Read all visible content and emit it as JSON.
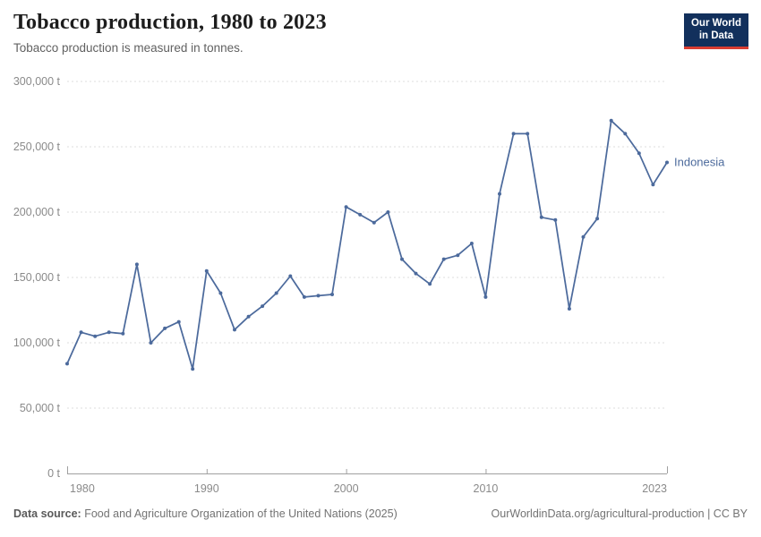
{
  "header": {
    "title": "Tobacco production, 1980 to 2023",
    "subtitle": "Tobacco production is measured in tonnes."
  },
  "logo": {
    "line1": "Our World",
    "line2": "in Data",
    "bg_color": "#12305c",
    "accent_color": "#d93d32"
  },
  "chart_data": {
    "type": "line",
    "title": "Tobacco production, 1980 to 2023",
    "unit": "tonnes",
    "xlabel": "",
    "ylabel": "tonnes",
    "xlim": [
      1980,
      2023
    ],
    "ylim": [
      0,
      300000
    ],
    "grid": "horizontal-dashed",
    "legend_position": "inline-right-of-last-point",
    "series": [
      {
        "name": "Indonesia",
        "color": "#4C6A9C",
        "x": [
          1980,
          1981,
          1982,
          1983,
          1984,
          1985,
          1986,
          1987,
          1988,
          1989,
          1990,
          1991,
          1992,
          1993,
          1994,
          1995,
          1996,
          1997,
          1998,
          1999,
          2000,
          2001,
          2002,
          2003,
          2004,
          2005,
          2006,
          2007,
          2008,
          2009,
          2010,
          2011,
          2012,
          2013,
          2014,
          2015,
          2016,
          2017,
          2018,
          2019,
          2020,
          2021,
          2022,
          2023
        ],
        "values": [
          84000,
          108000,
          105000,
          108000,
          107000,
          160000,
          100000,
          111000,
          116000,
          80000,
          155000,
          138000,
          110000,
          120000,
          128000,
          138000,
          151000,
          135000,
          136000,
          137000,
          204000,
          198000,
          192000,
          200000,
          164000,
          153000,
          145000,
          164000,
          167000,
          176000,
          135000,
          214000,
          260000,
          260000,
          196000,
          194000,
          126000,
          181000,
          195000,
          270000,
          260000,
          245000,
          221000,
          238000
        ]
      }
    ],
    "yticks": [
      {
        "value": 0,
        "label": "0 t"
      },
      {
        "value": 50000,
        "label": "50,000 t"
      },
      {
        "value": 100000,
        "label": "100,000 t"
      },
      {
        "value": 150000,
        "label": "150,000 t"
      },
      {
        "value": 200000,
        "label": "200,000 t"
      },
      {
        "value": 250000,
        "label": "250,000 t"
      },
      {
        "value": 300000,
        "label": "300,000 t"
      }
    ],
    "xticks": [
      {
        "year": 1980,
        "label": "1980",
        "anchor": "start",
        "edge": true
      },
      {
        "year": 1990,
        "label": "1990",
        "anchor": "middle",
        "edge": false
      },
      {
        "year": 2000,
        "label": "2000",
        "anchor": "middle",
        "edge": false
      },
      {
        "year": 2010,
        "label": "2010",
        "anchor": "middle",
        "edge": false
      },
      {
        "year": 2023,
        "label": "2023",
        "anchor": "end",
        "edge": true
      }
    ]
  },
  "footer": {
    "source_label": "Data source:",
    "source_text": "Food and Agriculture Organization of the United Nations (2025)",
    "note": "OurWorldinData.org/agricultural-production | CC BY"
  },
  "colors": {
    "line": "#4C6A9C",
    "gridline": "#dcdcdc",
    "axis": "#a0a0a0",
    "tick_label": "#8a8a8a"
  }
}
